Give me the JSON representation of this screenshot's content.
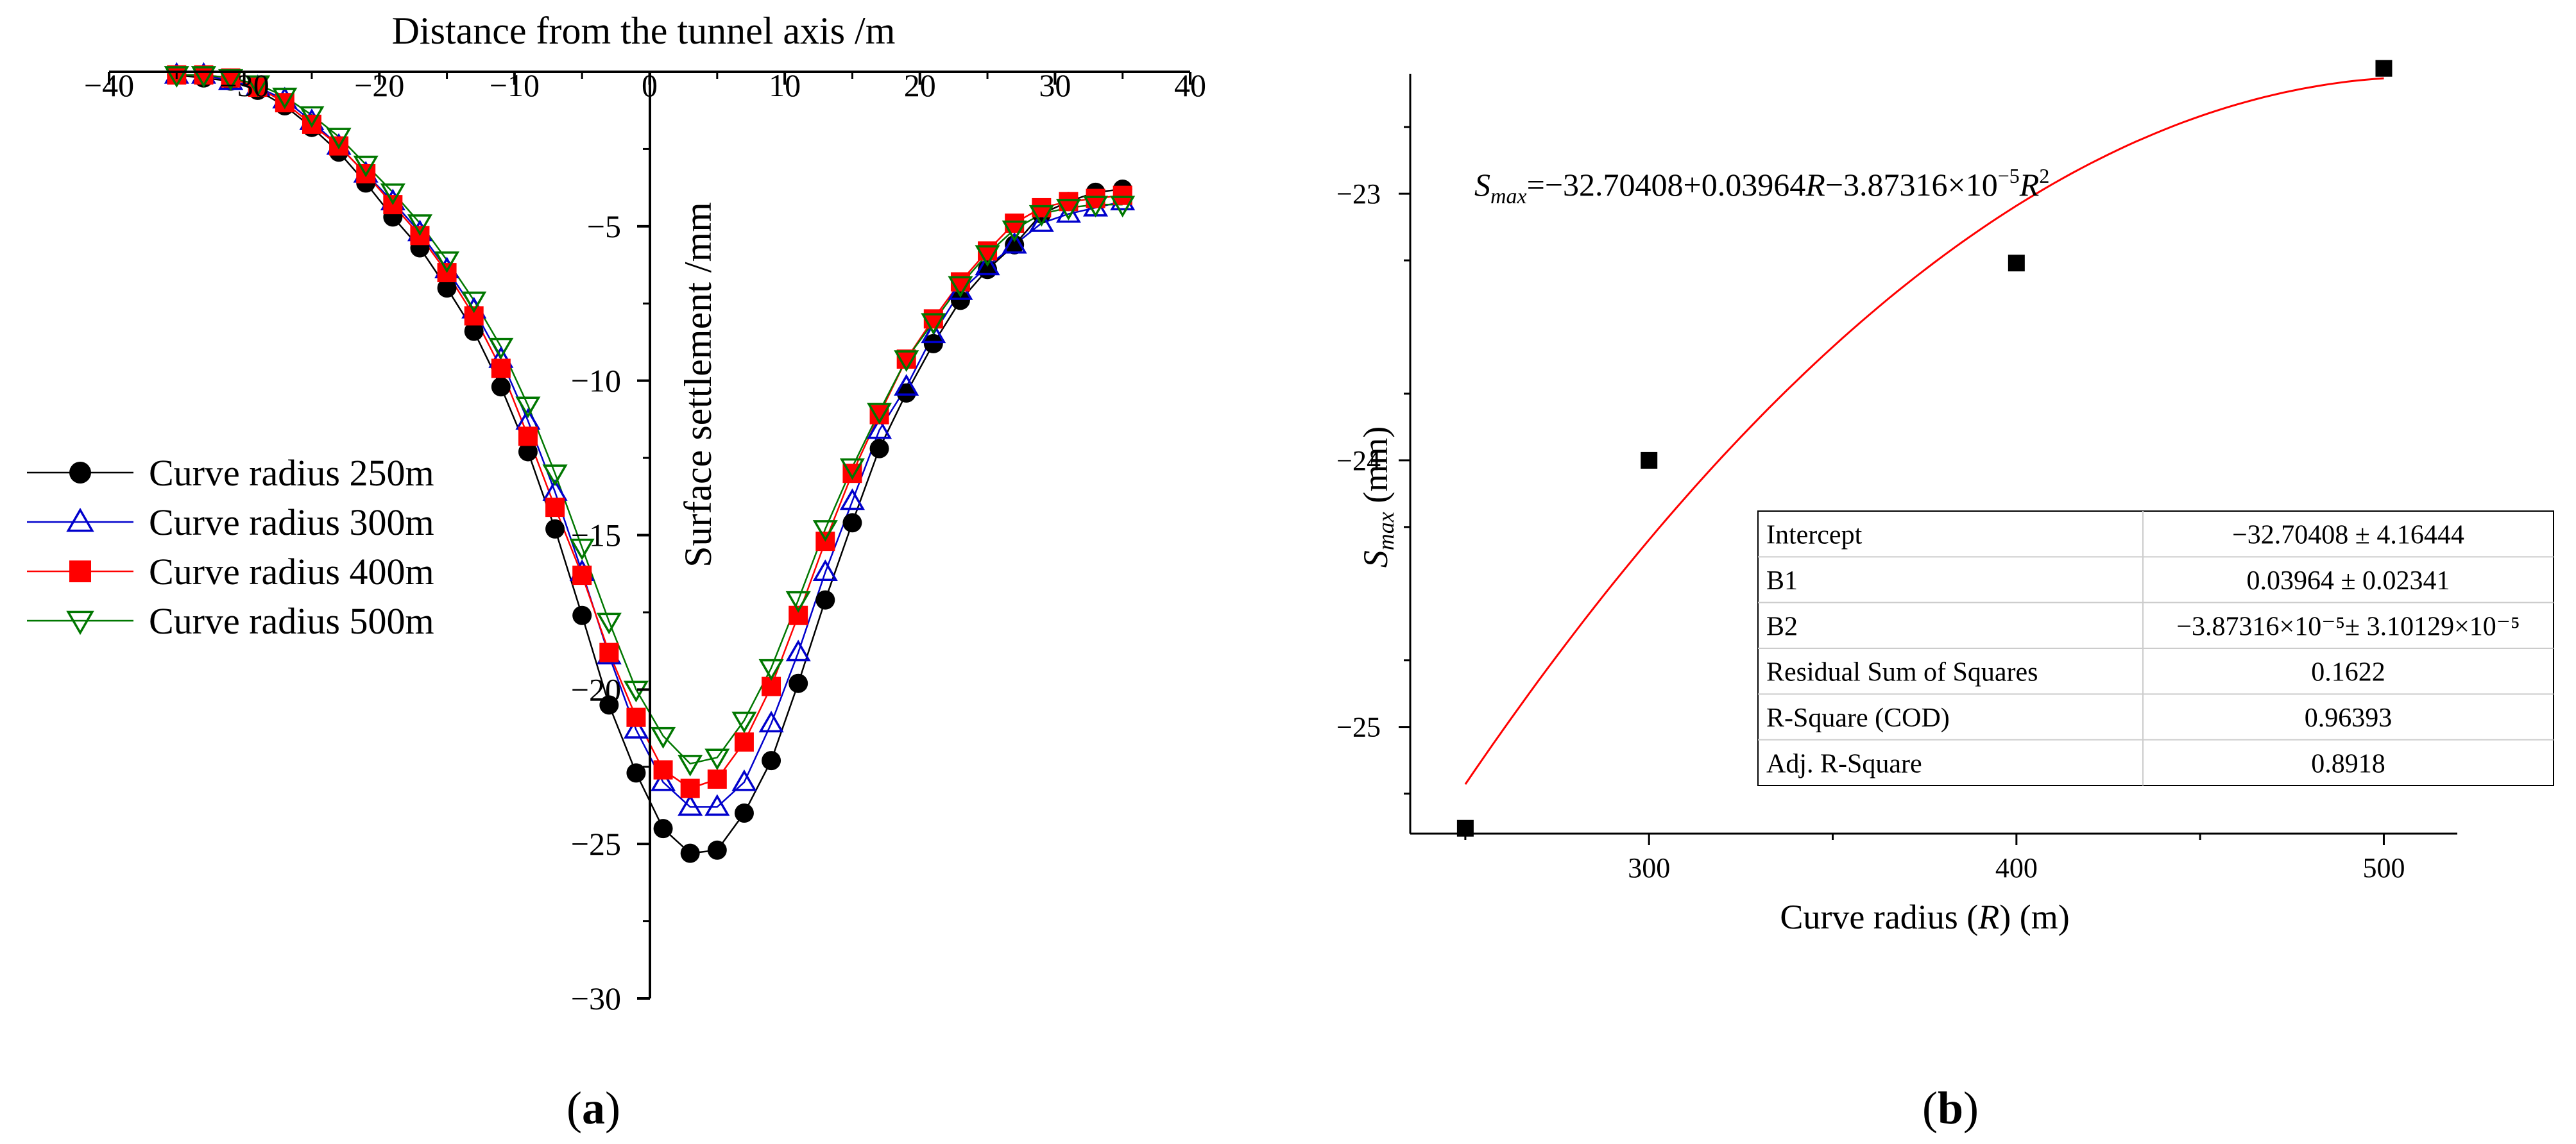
{
  "chart_data": [
    {
      "panel": "(a)",
      "type": "line",
      "title": "",
      "xlabel": "Distance from the tunnel axis /m",
      "ylabel": "Surface settlement /mm",
      "xlim": [
        -40,
        40
      ],
      "ylim": [
        -30,
        0
      ],
      "xticks": [
        -40,
        -30,
        -20,
        -10,
        0,
        10,
        20,
        30,
        40
      ],
      "yticks": [
        -5,
        -10,
        -15,
        -20,
        -25,
        -30
      ],
      "x": [
        -35,
        -33,
        -31,
        -29,
        -27,
        -25,
        -23,
        -21,
        -19,
        -17,
        -15,
        -13,
        -11,
        -9,
        -7,
        -5,
        -3,
        -1,
        1,
        3,
        5,
        7,
        9,
        11,
        13,
        15,
        17,
        19,
        21,
        23,
        25,
        27,
        29,
        31,
        33,
        35
      ],
      "legend_position": "left",
      "series": [
        {
          "name": "Curve radius 250m",
          "color": "#000000",
          "marker": "circle",
          "values": [
            -0.1,
            -0.2,
            -0.3,
            -0.6,
            -1.1,
            -1.8,
            -2.6,
            -3.6,
            -4.7,
            -5.7,
            -7.0,
            -8.4,
            -10.2,
            -12.3,
            -14.8,
            -17.6,
            -20.5,
            -22.7,
            -24.5,
            -25.3,
            -25.2,
            -24.0,
            -22.3,
            -19.8,
            -17.1,
            -14.6,
            -12.2,
            -10.4,
            -8.8,
            -7.4,
            -6.4,
            -5.6,
            -4.6,
            -4.2,
            -3.9,
            -3.8
          ]
        },
        {
          "name": "Curve radius 300m",
          "color": "#0000cc",
          "marker": "triangle-up",
          "values": [
            -0.1,
            -0.1,
            -0.3,
            -0.5,
            -0.9,
            -1.6,
            -2.4,
            -3.3,
            -4.2,
            -5.2,
            -6.4,
            -7.7,
            -9.3,
            -11.3,
            -13.6,
            -16.2,
            -18.9,
            -21.3,
            -23.0,
            -23.8,
            -23.8,
            -23.0,
            -21.1,
            -18.8,
            -16.2,
            -13.9,
            -11.6,
            -10.2,
            -8.5,
            -7.1,
            -6.3,
            -5.6,
            -4.9,
            -4.6,
            -4.4,
            -4.2
          ]
        },
        {
          "name": "Curve radius 400m",
          "color": "#ff0000",
          "marker": "square",
          "values": [
            -0.1,
            -0.1,
            -0.2,
            -0.5,
            -1.0,
            -1.7,
            -2.4,
            -3.3,
            -4.3,
            -5.3,
            -6.5,
            -7.9,
            -9.6,
            -11.8,
            -14.1,
            -16.3,
            -18.8,
            -20.9,
            -22.6,
            -23.2,
            -22.9,
            -21.7,
            -19.9,
            -17.6,
            -15.2,
            -13.0,
            -11.1,
            -9.3,
            -8.0,
            -6.8,
            -5.8,
            -4.9,
            -4.4,
            -4.2,
            -4.1,
            -4.0
          ]
        },
        {
          "name": "Curve radius 500m",
          "color": "#007700",
          "marker": "triangle-down",
          "values": [
            -0.1,
            -0.1,
            -0.2,
            -0.4,
            -0.8,
            -1.4,
            -2.1,
            -3.0,
            -3.9,
            -4.9,
            -6.1,
            -7.4,
            -8.9,
            -10.8,
            -13.0,
            -15.4,
            -17.8,
            -20.0,
            -21.5,
            -22.4,
            -22.2,
            -21.0,
            -19.3,
            -17.1,
            -14.8,
            -12.8,
            -11.0,
            -9.3,
            -8.1,
            -6.9,
            -5.9,
            -5.1,
            -4.6,
            -4.4,
            -4.3,
            -4.3
          ]
        }
      ]
    },
    {
      "panel": "(b)",
      "type": "scatter",
      "title": "",
      "xlabel": "Curve radius (R)  (m)",
      "ylabel": "Smax (mm)",
      "xlim": [
        235,
        520
      ],
      "ylim": [
        -25.4,
        -22.55
      ],
      "xticks": [
        300,
        400,
        500
      ],
      "yticks": [
        -23,
        -24,
        -25
      ],
      "points": {
        "x": [
          250,
          300,
          400,
          500
        ],
        "y": [
          -25.38,
          -24.0,
          -23.26,
          -22.53
        ]
      },
      "fit": {
        "label": "Smax=−32.70408+0.03964R−3.87316×10−5R2",
        "intercept": -32.70408,
        "b1": 0.03964,
        "b2": -3.87316e-05,
        "color": "#ff0000"
      },
      "table": [
        [
          "Intercept",
          "−32.70408 ± 4.16444"
        ],
        [
          "B1",
          "0.03964 ± 0.02341"
        ],
        [
          "B2",
          "−3.87316×10⁻⁵± 3.10129×10⁻⁵"
        ],
        [
          "Residual Sum of Squares",
          "0.1622"
        ],
        [
          "R-Square (COD)",
          "0.96393"
        ],
        [
          "Adj. R-Square",
          "0.8918"
        ]
      ]
    }
  ],
  "captions": {
    "a": {
      "open": "(",
      "letter": "a",
      "close": ")"
    },
    "b": {
      "open": "(",
      "letter": "b",
      "close": ")"
    }
  },
  "fit_equation": {
    "s": "S",
    "sub": "max",
    "eq": "=−32.70408+0.03964",
    "r1": "R",
    "mid": "−3.87316×10",
    "exp": "−5",
    "r2": "R",
    "sq": "2"
  },
  "b_ylabel": {
    "s": "S",
    "sub": "max",
    "unit": " (mm)"
  },
  "b_xlabel": {
    "pre": "Curve radius (",
    "r": "R",
    "post": ")  (m)"
  }
}
